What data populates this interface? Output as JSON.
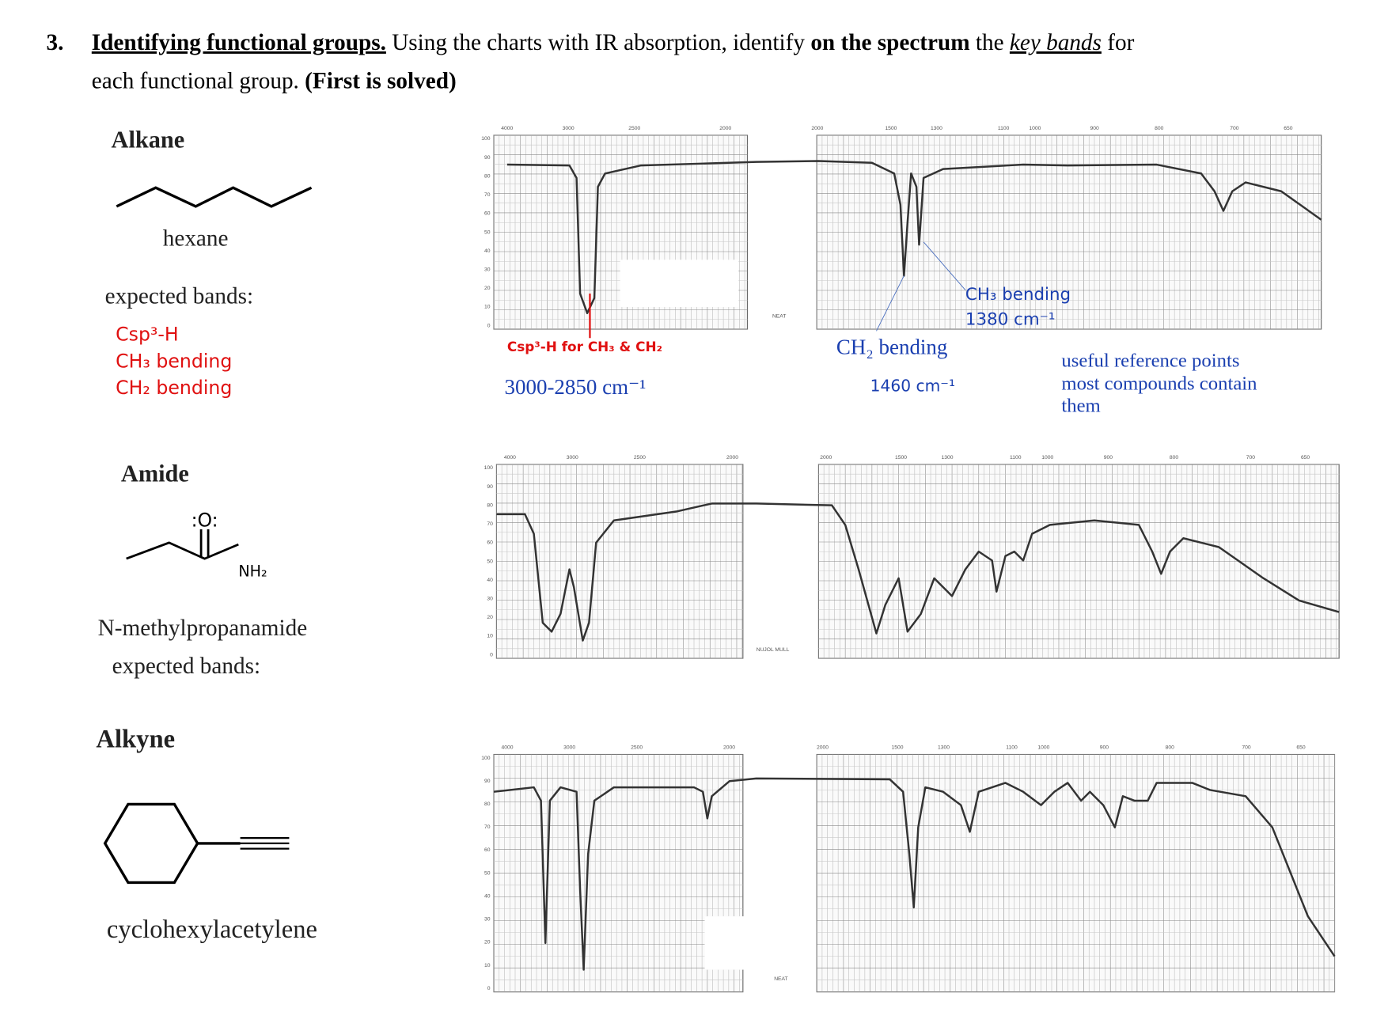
{
  "question": {
    "number": "3.",
    "title": "Identifying functional groups.",
    "line1": [
      " Using the charts with IR absorption, identify ",
      "on the spectrum",
      " the ",
      "key bands",
      " for"
    ],
    "line2": [
      "each functional group. ",
      "(First is solved)"
    ]
  },
  "sections": [
    {
      "name": "Alkane",
      "compound": "hexane",
      "expected_label": "expected bands:",
      "expected_bands": [
        "Csp³-H",
        "CH₃ bending",
        "CH₂ bending"
      ],
      "annotations": {
        "csp3": "Csp³-H for CH₃ & CH₂",
        "csp3_range": "3000-2850 cm⁻¹",
        "ch2": "CH₂ bending",
        "ch2_value": "1460 cm⁻¹",
        "ch3": "CH₃ bending",
        "ch3_value": "1380 cm⁻¹",
        "reference": [
          "useful reference points",
          "most compounds contain",
          "them"
        ]
      }
    },
    {
      "name": "Amide",
      "structure_labels": [
        ":O:",
        "NH₂"
      ],
      "compound": "N-methylpropanamide",
      "expected_label": "expected bands:"
    },
    {
      "name": "Alkyne",
      "compound": "cyclohexylacetylene"
    }
  ],
  "spectra": [
    {
      "x_labels": [
        "4000",
        "3000",
        "2500",
        "2000",
        "2000",
        "1500",
        "1300",
        "1100",
        "1000",
        "900",
        "800",
        "700",
        "650"
      ],
      "y_labels": [
        "100",
        "90",
        "80",
        "70",
        "60",
        "50",
        "40",
        "30",
        "20",
        "10",
        "0"
      ],
      "sample_label": "NEAT"
    },
    {
      "x_labels": [
        "4000",
        "3000",
        "2500",
        "2000",
        "2000",
        "1500",
        "1300",
        "1100",
        "1000",
        "900",
        "800",
        "700",
        "650"
      ],
      "y_labels": [
        "100",
        "90",
        "80",
        "70",
        "60",
        "50",
        "40",
        "30",
        "20",
        "10",
        "0"
      ],
      "sample_label": "NUJOL MULL"
    },
    {
      "x_labels": [
        "4000",
        "3000",
        "2500",
        "2000",
        "2000",
        "1500",
        "1300",
        "1100",
        "1000",
        "900",
        "800",
        "700",
        "650"
      ],
      "y_labels": [
        "100",
        "90",
        "80",
        "70",
        "60",
        "50",
        "40",
        "30",
        "20",
        "10",
        "0"
      ],
      "sample_label": "NEAT"
    }
  ]
}
